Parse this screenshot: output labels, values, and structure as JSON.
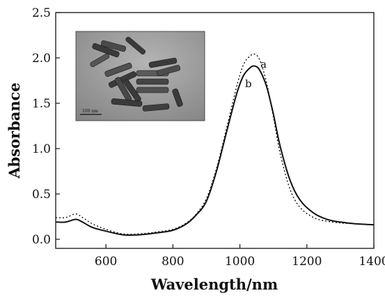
{
  "chart_data": {
    "type": "line",
    "xlabel": "Wavelength/nm",
    "ylabel": "Absorbance",
    "xlim": [
      450,
      1400
    ],
    "ylim": [
      -0.1,
      2.5
    ],
    "x_ticks": [
      "600",
      "800",
      "1000",
      "1200",
      "1400"
    ],
    "y_ticks": [
      "0.0",
      "0.5",
      "1.0",
      "1.5",
      "2.0",
      "2.5"
    ],
    "grid": false,
    "series": [
      {
        "name": "a",
        "style": "dotted",
        "x": [
          450,
          480,
          510,
          530,
          560,
          600,
          650,
          700,
          750,
          800,
          840,
          870,
          900,
          930,
          960,
          990,
          1010,
          1030,
          1045,
          1060,
          1080,
          1100,
          1120,
          1150,
          1180,
          1220,
          1260,
          1300,
          1350,
          1400
        ],
        "y": [
          0.24,
          0.24,
          0.28,
          0.24,
          0.17,
          0.11,
          0.06,
          0.06,
          0.08,
          0.11,
          0.18,
          0.28,
          0.45,
          0.78,
          1.22,
          1.68,
          1.92,
          2.02,
          2.04,
          1.97,
          1.72,
          1.35,
          0.95,
          0.55,
          0.35,
          0.24,
          0.2,
          0.18,
          0.17,
          0.16
        ]
      },
      {
        "name": "b",
        "style": "solid",
        "x": [
          450,
          480,
          510,
          530,
          560,
          600,
          650,
          700,
          750,
          800,
          840,
          870,
          900,
          930,
          960,
          990,
          1010,
          1030,
          1045,
          1060,
          1080,
          1100,
          1120,
          1150,
          1180,
          1220,
          1260,
          1300,
          1350,
          1400
        ],
        "y": [
          0.19,
          0.19,
          0.22,
          0.19,
          0.13,
          0.09,
          0.05,
          0.05,
          0.07,
          0.1,
          0.17,
          0.27,
          0.42,
          0.75,
          1.18,
          1.6,
          1.8,
          1.89,
          1.91,
          1.86,
          1.68,
          1.38,
          1.03,
          0.65,
          0.43,
          0.29,
          0.22,
          0.19,
          0.17,
          0.16
        ]
      }
    ],
    "annotations": [
      "a",
      "b"
    ],
    "inset": {
      "kind": "TEM micrograph of nanorods",
      "scale_bar_label": "100 nm"
    }
  },
  "colors": {
    "ink": "#111111",
    "background": "#ffffff",
    "inset_background": "#9a9a9a"
  }
}
